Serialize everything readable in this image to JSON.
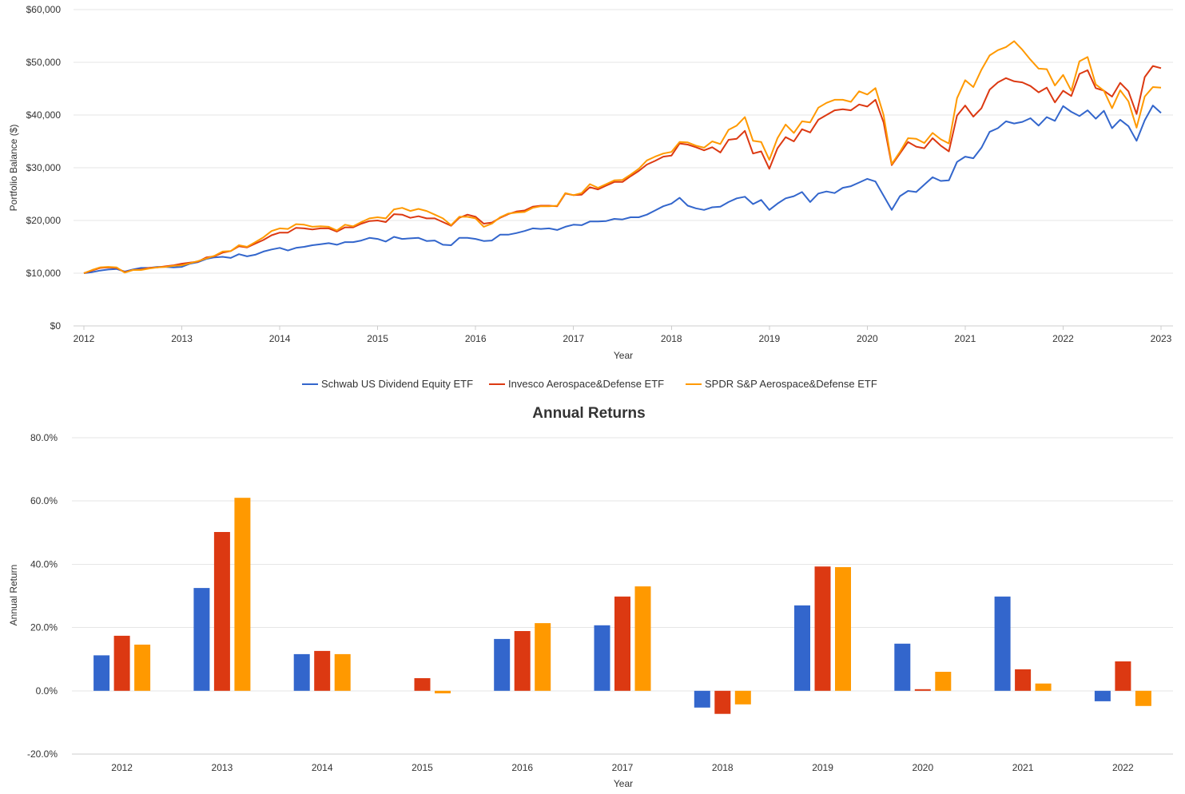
{
  "chart_data": [
    {
      "type": "line",
      "xlabel": "Year",
      "ylabel": "Portfolio Balance ($)",
      "ylim": [
        0,
        60000
      ],
      "yticks": [
        "$0",
        "$10,000",
        "$20,000",
        "$30,000",
        "$40,000",
        "$50,000",
        "$60,000"
      ],
      "xticks": [
        "2012",
        "2013",
        "2014",
        "2015",
        "2016",
        "2017",
        "2018",
        "2019",
        "2020",
        "2021",
        "2022",
        "2023"
      ],
      "grid": true,
      "legend": "bottom",
      "x": [
        "2012-01",
        "2012-02",
        "2012-03",
        "2012-04",
        "2012-05",
        "2012-06",
        "2012-07",
        "2012-08",
        "2012-09",
        "2012-10",
        "2012-11",
        "2012-12",
        "2013-01",
        "2013-02",
        "2013-03",
        "2013-04",
        "2013-05",
        "2013-06",
        "2013-07",
        "2013-08",
        "2013-09",
        "2013-10",
        "2013-11",
        "2013-12",
        "2014-01",
        "2014-02",
        "2014-03",
        "2014-04",
        "2014-05",
        "2014-06",
        "2014-07",
        "2014-08",
        "2014-09",
        "2014-10",
        "2014-11",
        "2014-12",
        "2015-01",
        "2015-02",
        "2015-03",
        "2015-04",
        "2015-05",
        "2015-06",
        "2015-07",
        "2015-08",
        "2015-09",
        "2015-10",
        "2015-11",
        "2015-12",
        "2016-01",
        "2016-02",
        "2016-03",
        "2016-04",
        "2016-05",
        "2016-06",
        "2016-07",
        "2016-08",
        "2016-09",
        "2016-10",
        "2016-11",
        "2016-12",
        "2017-01",
        "2017-02",
        "2017-03",
        "2017-04",
        "2017-05",
        "2017-06",
        "2017-07",
        "2017-08",
        "2017-09",
        "2017-10",
        "2017-11",
        "2017-12",
        "2018-01",
        "2018-02",
        "2018-03",
        "2018-04",
        "2018-05",
        "2018-06",
        "2018-07",
        "2018-08",
        "2018-09",
        "2018-10",
        "2018-11",
        "2018-12",
        "2019-01",
        "2019-02",
        "2019-03",
        "2019-04",
        "2019-05",
        "2019-06",
        "2019-07",
        "2019-08",
        "2019-09",
        "2019-10",
        "2019-11",
        "2019-12",
        "2020-01",
        "2020-02",
        "2020-03",
        "2020-04",
        "2020-05",
        "2020-06",
        "2020-07",
        "2020-08",
        "2020-09",
        "2020-10",
        "2020-11",
        "2020-12",
        "2021-01",
        "2021-02",
        "2021-03",
        "2021-04",
        "2021-05",
        "2021-06",
        "2021-07",
        "2021-08",
        "2021-09",
        "2021-10",
        "2021-11",
        "2021-12",
        "2022-01",
        "2022-02",
        "2022-03",
        "2022-04",
        "2022-05",
        "2022-06",
        "2022-07",
        "2022-08",
        "2022-09",
        "2022-10",
        "2022-11",
        "2022-12",
        "2023-01"
      ],
      "series": [
        {
          "name": "Schwab US Dividend Equity ETF",
          "color": "#3366cc",
          "values": [
            10000,
            10200,
            10500,
            10700,
            10800,
            10300,
            10700,
            11000,
            11000,
            11200,
            11200,
            11100,
            11200,
            11800,
            12100,
            12700,
            13000,
            13100,
            12900,
            13600,
            13200,
            13500,
            14100,
            14500,
            14800,
            14300,
            14800,
            15000,
            15300,
            15500,
            15700,
            15400,
            15900,
            15900,
            16200,
            16700,
            16500,
            16000,
            16900,
            16500,
            16600,
            16700,
            16100,
            16200,
            15400,
            15300,
            16700,
            16700,
            16500,
            16100,
            16200,
            17300,
            17300,
            17600,
            18000,
            18500,
            18400,
            18500,
            18200,
            18800,
            19200,
            19100,
            19800,
            19800,
            19900,
            20300,
            20200,
            20600,
            20600,
            21100,
            21900,
            22700,
            23200,
            24300,
            22800,
            22300,
            22000,
            22500,
            22600,
            23500,
            24200,
            24500,
            23100,
            23900,
            22000,
            23200,
            24200,
            24600,
            25400,
            23500,
            25100,
            25500,
            25200,
            26200,
            26500,
            27200,
            27900,
            27400,
            24700,
            22000,
            24600,
            25600,
            25400,
            26800,
            28200,
            27500,
            27600,
            31100,
            32100,
            31800,
            33800,
            36800,
            37500,
            38800,
            38400,
            38700,
            39400,
            38000,
            39600,
            38900,
            41700,
            40600,
            39800,
            40900,
            39300,
            40800,
            37500,
            39100,
            37900,
            35100,
            39000,
            41800,
            40400
          ]
        },
        {
          "name": "Invesco Aerospace&Defense ETF",
          "color": "#dc3912",
          "values": [
            10000,
            10500,
            11000,
            11100,
            11000,
            10200,
            10600,
            10700,
            11000,
            11100,
            11300,
            11500,
            11800,
            12000,
            12200,
            13000,
            13200,
            13900,
            14200,
            15100,
            14900,
            15600,
            16300,
            17200,
            17700,
            17700,
            18600,
            18500,
            18300,
            18500,
            18500,
            17900,
            18700,
            18700,
            19400,
            19900,
            20000,
            19700,
            21200,
            21100,
            20500,
            20800,
            20400,
            20400,
            19700,
            19000,
            20500,
            21100,
            20700,
            19400,
            19600,
            20500,
            21200,
            21700,
            21900,
            22600,
            22800,
            22800,
            22700,
            25100,
            24800,
            24900,
            26300,
            25900,
            26600,
            27300,
            27300,
            28400,
            29400,
            30600,
            31300,
            32100,
            32300,
            34600,
            34400,
            33900,
            33300,
            33900,
            32900,
            35300,
            35500,
            37000,
            32700,
            33100,
            29800,
            33700,
            35800,
            35000,
            37300,
            36700,
            39100,
            40000,
            40900,
            41100,
            40900,
            42000,
            41600,
            42900,
            38600,
            30500,
            32700,
            34900,
            34000,
            33700,
            35600,
            34200,
            33100,
            39900,
            41800,
            39700,
            41300,
            44800,
            46200,
            47000,
            46400,
            46200,
            45500,
            44300,
            45200,
            42400,
            44600,
            43600,
            47800,
            48500,
            45100,
            44600,
            43500,
            46100,
            44500,
            40200,
            47200,
            49300,
            48900
          ]
        },
        {
          "name": "SPDR S&P Aerospace&Defense ETF",
          "color": "#ff9900",
          "values": [
            10000,
            10600,
            11100,
            11200,
            11100,
            10100,
            10600,
            10600,
            10900,
            11100,
            11200,
            11400,
            11500,
            11900,
            12300,
            12800,
            13300,
            14100,
            14200,
            15300,
            15000,
            15900,
            16800,
            18000,
            18500,
            18400,
            19300,
            19200,
            18800,
            18900,
            18800,
            18100,
            19200,
            18900,
            19700,
            20400,
            20600,
            20400,
            22100,
            22400,
            21800,
            22200,
            21800,
            21100,
            20400,
            19100,
            20700,
            20700,
            20400,
            18800,
            19400,
            20600,
            21300,
            21500,
            21600,
            22400,
            22700,
            22700,
            22800,
            25200,
            24800,
            25200,
            26900,
            26200,
            26900,
            27600,
            27700,
            28700,
            29800,
            31400,
            32100,
            32700,
            33000,
            34900,
            34800,
            34200,
            33800,
            35000,
            34500,
            37200,
            38000,
            39600,
            35100,
            34900,
            31500,
            35600,
            38200,
            36600,
            38800,
            38600,
            41400,
            42300,
            42900,
            42900,
            42500,
            44500,
            43900,
            45100,
            40000,
            30700,
            33000,
            35600,
            35500,
            34700,
            36600,
            35400,
            34600,
            43200,
            46600,
            45300,
            48600,
            51300,
            52300,
            52900,
            54000,
            52400,
            50500,
            48800,
            48700,
            45600,
            47600,
            44600,
            50200,
            51000,
            45800,
            44600,
            41300,
            44700,
            42600,
            37600,
            43500,
            45300,
            45200
          ]
        }
      ]
    },
    {
      "type": "bar",
      "title": "Annual Returns",
      "xlabel": "Year",
      "ylabel": "Annual Return",
      "ylim": [
        -20,
        80
      ],
      "yticks": [
        "-20.0%",
        "0.0%",
        "20.0%",
        "40.0%",
        "60.0%",
        "80.0%"
      ],
      "grid": true,
      "categories": [
        "2012",
        "2013",
        "2014",
        "2015",
        "2016",
        "2017",
        "2018",
        "2019",
        "2020",
        "2021",
        "2022"
      ],
      "series": [
        {
          "color": "#3366cc",
          "values": [
            11.2,
            32.5,
            11.6,
            0.0,
            16.4,
            20.7,
            -5.3,
            27.0,
            14.9,
            29.8,
            -3.3
          ]
        },
        {
          "color": "#dc3912",
          "values": [
            17.4,
            50.2,
            12.6,
            4.0,
            18.9,
            29.8,
            -7.3,
            39.3,
            0.5,
            6.8,
            9.3
          ]
        },
        {
          "color": "#ff9900",
          "values": [
            14.6,
            61.0,
            11.6,
            -0.8,
            21.4,
            33.0,
            -4.3,
            39.1,
            6.0,
            2.3,
            -4.8
          ]
        }
      ]
    }
  ]
}
